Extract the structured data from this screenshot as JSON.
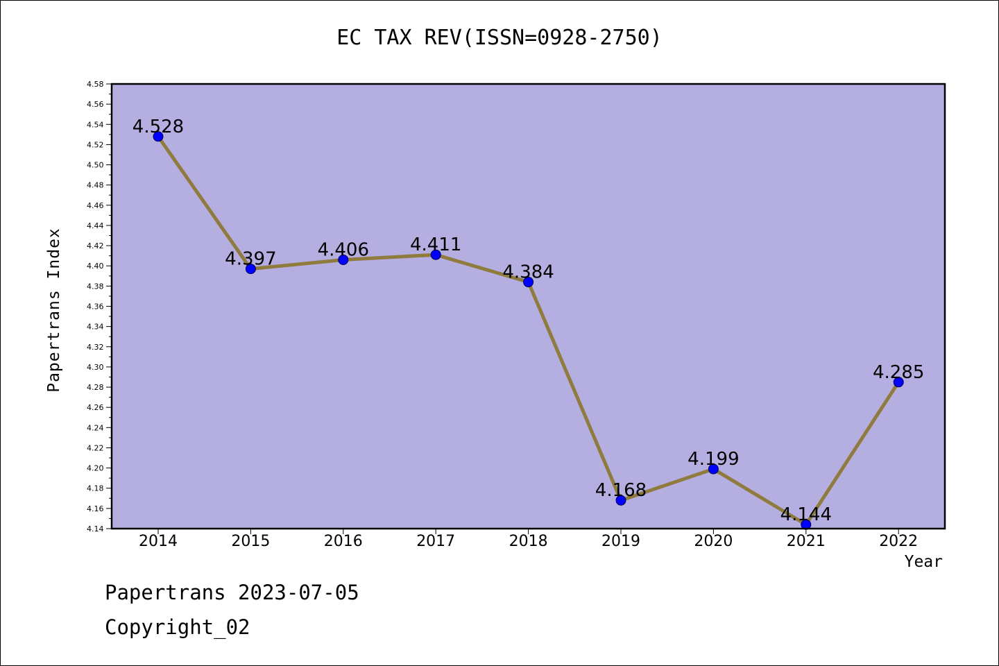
{
  "title": "EC TAX REV(ISSN=0928-2750)",
  "footer": {
    "line1": "Papertrans 2023-07-05",
    "line2": "Copyright_02"
  },
  "colors": {
    "plot_bg": "#b5aee1",
    "line": "#8f7b3e",
    "marker": "#0000ff"
  },
  "chart_data": {
    "type": "line",
    "title": "EC TAX REV(ISSN=0928-2750)",
    "xlabel": "Year",
    "ylabel": "Papertrans Index",
    "categories": [
      "2014",
      "2015",
      "2016",
      "2017",
      "2018",
      "2019",
      "2020",
      "2021",
      "2022"
    ],
    "series": [
      {
        "values": [
          4.528,
          4.397,
          4.406,
          4.411,
          4.384,
          4.168,
          4.199,
          4.144,
          4.285
        ]
      }
    ],
    "data_labels": [
      "4.528",
      "4.397",
      "4.406",
      "4.411",
      "4.384",
      "4.168",
      "4.199",
      "4.144",
      "4.285"
    ],
    "ylim": [
      4.14,
      4.58
    ],
    "yticks": [
      "4.14",
      "4.16",
      "4.18",
      "4.20",
      "4.22",
      "4.24",
      "4.26",
      "4.28",
      "4.30",
      "4.32",
      "4.34",
      "4.36",
      "4.38",
      "4.40",
      "4.42",
      "4.44",
      "4.46",
      "4.48",
      "4.50",
      "4.52",
      "4.54",
      "4.56",
      "4.58"
    ],
    "grid": false,
    "legend": "none"
  }
}
